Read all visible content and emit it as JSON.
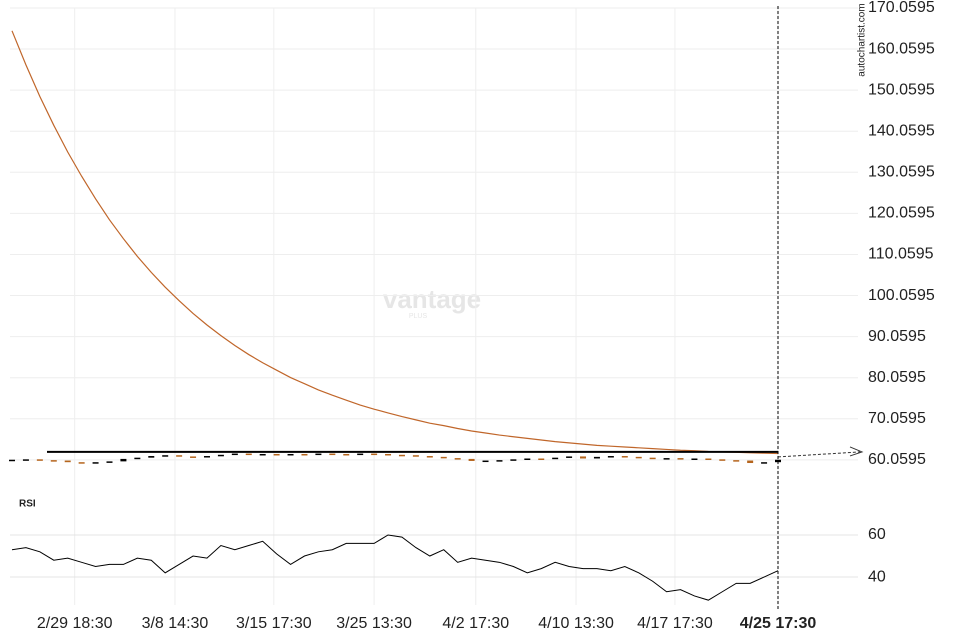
{
  "chart_data": {
    "type": "candlestick",
    "source": "autochartist.com",
    "watermark": "vantage",
    "watermark_sub": "PLUS",
    "xlim": [
      0,
      55
    ],
    "xticks": [
      {
        "value": 4.5,
        "label": "2/29 18:30"
      },
      {
        "value": 11.7,
        "label": "3/8 14:30"
      },
      {
        "value": 18.8,
        "label": "3/15 17:30"
      },
      {
        "value": 26,
        "label": "3/25 13:30"
      },
      {
        "value": 33.3,
        "label": "4/2 17:30"
      },
      {
        "value": 40.5,
        "label": "4/10 13:30"
      },
      {
        "value": 47.6,
        "label": "4/17 17:30"
      },
      {
        "value": 55,
        "label": "4/25 17:30"
      }
    ],
    "ylim": [
      57.6,
      172
    ],
    "yticks": [
      60.0595,
      70.0595,
      80.0595,
      90.0595,
      100.0595,
      110.0595,
      120.0595,
      130.0595,
      140.0595,
      150.0595,
      160.0595,
      170.0595
    ],
    "grid": true,
    "up_color": "#000000",
    "down_color": "#b5651d",
    "open": [
      60.0,
      60.1,
      60.2,
      60.0,
      59.9,
      59.5,
      59.4,
      59.5,
      59.7,
      60.3,
      60.6,
      61.0,
      61.2,
      60.9,
      60.8,
      61.0,
      61.3,
      61.6,
      61.4,
      61.5,
      61.3,
      61.5,
      61.4,
      61.6,
      61.5,
      61.4,
      61.6,
      61.5,
      61.3,
      61.2,
      61.0,
      60.8,
      60.5,
      60.3,
      59.8,
      59.9,
      60.0,
      60.2,
      60.4,
      60.3,
      60.6,
      60.9,
      60.4,
      60.8,
      61.0,
      60.8,
      60.6,
      60.4,
      60.5,
      60.3,
      60.4,
      60.2,
      60.0,
      59.9,
      59.3,
      59.5
    ],
    "close": [
      60.1,
      60.2,
      60.0,
      59.9,
      59.5,
      59.4,
      59.5,
      59.7,
      60.3,
      60.6,
      61.0,
      61.2,
      60.9,
      60.8,
      61.0,
      61.3,
      61.6,
      61.4,
      61.5,
      61.3,
      61.5,
      61.4,
      61.6,
      61.5,
      61.4,
      61.6,
      61.5,
      61.3,
      61.2,
      61.0,
      60.8,
      60.5,
      60.3,
      59.8,
      59.9,
      60.0,
      60.2,
      60.4,
      60.3,
      60.6,
      60.9,
      60.4,
      60.8,
      61.0,
      60.8,
      60.6,
      60.4,
      60.5,
      60.3,
      60.4,
      60.2,
      60.0,
      59.9,
      59.3,
      59.5,
      60.1
    ],
    "moving_average": {
      "color": "#c0662a",
      "values": [
        164.5,
        156.2,
        148.5,
        141.5,
        135.0,
        129.1,
        123.6,
        118.5,
        113.9,
        109.6,
        105.7,
        102.1,
        98.8,
        95.7,
        92.9,
        90.3,
        87.9,
        85.7,
        83.7,
        81.9,
        80.1,
        78.6,
        77.1,
        75.8,
        74.6,
        73.4,
        72.4,
        71.5,
        70.6,
        69.8,
        69.0,
        68.4,
        67.7,
        67.1,
        66.6,
        66.1,
        65.7,
        65.3,
        64.9,
        64.5,
        64.2,
        63.9,
        63.6,
        63.4,
        63.2,
        63.0,
        62.8,
        62.6,
        62.4,
        62.3,
        62.1,
        62.0,
        61.9,
        61.8,
        61.7,
        61.6
      ]
    },
    "level": 62.0,
    "rsi": {
      "label": "RSI",
      "color": "#000000",
      "ylim": [
        26.7,
        81.4
      ],
      "yticks": [
        40,
        60
      ],
      "values": [
        53,
        54,
        52,
        48,
        49,
        47,
        45,
        46,
        46,
        49,
        48,
        42,
        46,
        50,
        49,
        55,
        53,
        55,
        57,
        51,
        46,
        50,
        52,
        53,
        56,
        56,
        56,
        60,
        59,
        54,
        50,
        53,
        47,
        49,
        48,
        47,
        45,
        42,
        44,
        47,
        45,
        44,
        44,
        43,
        45,
        42,
        38,
        33,
        34,
        31,
        29,
        33,
        37,
        37,
        40,
        43
      ]
    }
  }
}
